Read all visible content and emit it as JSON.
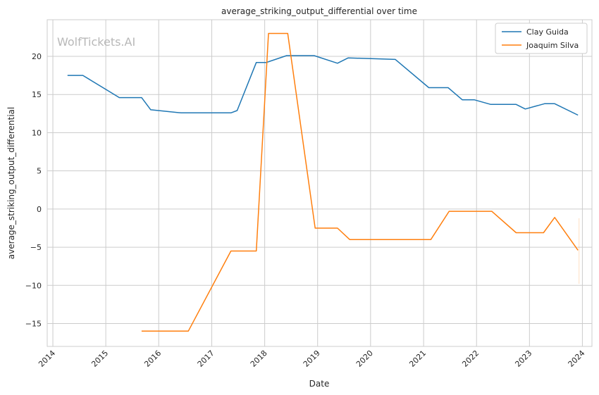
{
  "chart_data": {
    "type": "line",
    "title": "average_striking_output_differential over time",
    "xlabel": "Date",
    "ylabel": "average_striking_output_differential",
    "watermark": "WolfTickets.AI",
    "x_ticks": [
      "2014",
      "2015",
      "2016",
      "2017",
      "2018",
      "2019",
      "2020",
      "2021",
      "2022",
      "2023",
      "2024"
    ],
    "y_ticks": [
      -15,
      -10,
      -5,
      0,
      5,
      10,
      15,
      20
    ],
    "xlim": [
      "2013-11-23",
      "2024-03-07"
    ],
    "ylim": [
      -18.0,
      24.8
    ],
    "grid": true,
    "legend_position": "top-right",
    "series": [
      {
        "name": "Clay Guida",
        "color": "#1f77b4",
        "points": [
          [
            "2014-04-12",
            17.5
          ],
          [
            "2014-07-27",
            17.5
          ],
          [
            "2015-04-04",
            14.6
          ],
          [
            "2015-09-05",
            14.6
          ],
          [
            "2015-11-07",
            13.0
          ],
          [
            "2016-06-04",
            12.6
          ],
          [
            "2017-05-13",
            12.6
          ],
          [
            "2017-06-25",
            12.9
          ],
          [
            "2017-11-04",
            19.2
          ],
          [
            "2018-01-13",
            19.2
          ],
          [
            "2018-06-01",
            20.1
          ],
          [
            "2018-12-08",
            20.1
          ],
          [
            "2019-05-18",
            19.1
          ],
          [
            "2019-07-31",
            19.8
          ],
          [
            "2020-06-20",
            19.6
          ],
          [
            "2021-02-06",
            15.9
          ],
          [
            "2021-06-19",
            15.9
          ],
          [
            "2021-09-25",
            14.3
          ],
          [
            "2021-12-18",
            14.3
          ],
          [
            "2022-04-09",
            13.7
          ],
          [
            "2022-10-01",
            13.7
          ],
          [
            "2022-12-03",
            13.1
          ],
          [
            "2023-04-15",
            13.8
          ],
          [
            "2023-06-24",
            13.8
          ],
          [
            "2023-12-02",
            12.3
          ]
        ]
      },
      {
        "name": "Joaquim Silva",
        "color": "#ff7f0e",
        "points": [
          [
            "2015-09-05",
            -16.0
          ],
          [
            "2016-07-23",
            -16.0
          ],
          [
            "2017-05-13",
            -5.5
          ],
          [
            "2017-11-04",
            -5.5
          ],
          [
            "2018-01-27",
            23.0
          ],
          [
            "2018-06-09",
            23.0
          ],
          [
            "2018-12-15",
            -2.5
          ],
          [
            "2019-05-18",
            -2.5
          ],
          [
            "2019-08-10",
            -4.0
          ],
          [
            "2021-02-20",
            -4.0
          ],
          [
            "2021-06-26",
            -0.3
          ],
          [
            "2022-04-16",
            -0.3
          ],
          [
            "2022-10-01",
            -3.1
          ],
          [
            "2023-04-08",
            -3.1
          ],
          [
            "2023-06-24",
            -1.1
          ],
          [
            "2023-12-02",
            -5.4
          ]
        ]
      }
    ],
    "faint_marks": [
      {
        "series": "Joaquim Silva",
        "date": "2023-12-09",
        "y_from": -9.8,
        "y_to": -1.2
      }
    ]
  }
}
